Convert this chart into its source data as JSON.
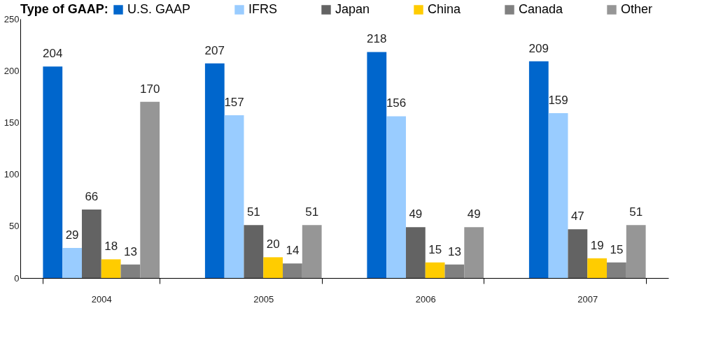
{
  "chart_data": {
    "type": "bar",
    "legend_title": "Type of GAAP:",
    "categories": [
      "2004",
      "2005",
      "2006",
      "2007"
    ],
    "series": [
      {
        "name": "U.S. GAAP",
        "color": "#0066cc",
        "values": [
          204,
          207,
          218,
          209
        ]
      },
      {
        "name": "IFRS",
        "color": "#99ccff",
        "values": [
          29,
          157,
          156,
          159
        ]
      },
      {
        "name": "Japan",
        "color": "#636363",
        "values": [
          66,
          51,
          49,
          47
        ]
      },
      {
        "name": "China",
        "color": "#ffcc00",
        "values": [
          18,
          20,
          15,
          19
        ]
      },
      {
        "name": "Canada",
        "color": "#808080",
        "values": [
          13,
          14,
          13,
          15
        ]
      },
      {
        "name": "Other",
        "color": "#969696",
        "values": [
          170,
          51,
          49,
          51
        ]
      }
    ],
    "ylim": [
      0,
      250
    ],
    "yticks": [
      0,
      50,
      100,
      150,
      200,
      250
    ],
    "data_labels": true,
    "grid": false,
    "legend": "top"
  }
}
